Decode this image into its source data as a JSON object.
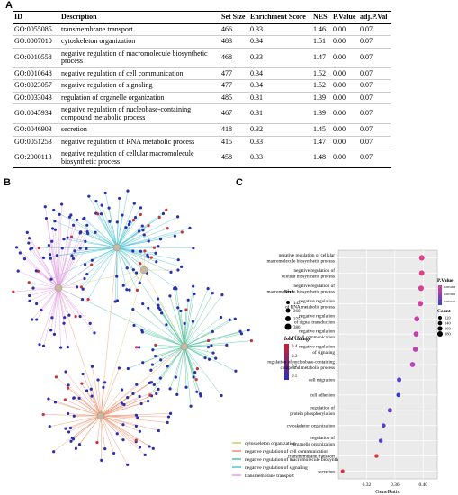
{
  "panel_labels": [
    "A",
    "B",
    "C"
  ],
  "table": {
    "columns": [
      "ID",
      "Description",
      "Set Size",
      "Enrichment Score",
      "NES",
      "P.Value",
      "adj.P.Val"
    ],
    "rows": [
      [
        "GO:0055085",
        "transmembrane transport",
        "466",
        "0.33",
        "1.46",
        "0.00",
        "0.07"
      ],
      [
        "GO:0007010",
        "cytoskeleton organization",
        "483",
        "0.34",
        "1.51",
        "0.00",
        "0.07"
      ],
      [
        "GO:0010558",
        "negative regulation of macromolecule biosynthetic process",
        "468",
        "0.33",
        "1.47",
        "0.00",
        "0.07"
      ],
      [
        "GO:0010648",
        "negative regulation of cell communication",
        "477",
        "0.34",
        "1.52",
        "0.00",
        "0.07"
      ],
      [
        "GO:0023057",
        "negative regulation of signaling",
        "477",
        "0.34",
        "1.52",
        "0.00",
        "0.07"
      ],
      [
        "GO:0033043",
        "regulation of organelle organization",
        "485",
        "0.31",
        "1.39",
        "0.00",
        "0.07"
      ],
      [
        "GO:0045934",
        "negative regulation of nucleobase-containing compound metabolic process",
        "467",
        "0.31",
        "1.39",
        "0.00",
        "0.07"
      ],
      [
        "GO:0046903",
        "secretion",
        "418",
        "0.32",
        "1.45",
        "0.00",
        "0.07"
      ],
      [
        "GO:0051253",
        "negative regulation of RNA metabolic process",
        "415",
        "0.33",
        "1.47",
        "0.00",
        "0.07"
      ],
      [
        "GO:2000113",
        "negative regulation of cellular macromolecule biosynthetic process",
        "458",
        "0.33",
        "1.48",
        "0.00",
        "0.07"
      ]
    ]
  },
  "network": {
    "size_title": "Size",
    "size_labels": [
      "143",
      "360",
      "375",
      "386"
    ],
    "fold_change_title": "fold change",
    "fold_change_labels": [
      "0.4",
      "0.3",
      "0.2",
      "0.1"
    ],
    "pathways": [
      {
        "name": "cytoskeleton organization",
        "color": "#d8c86a"
      },
      {
        "name": "negative regulation of cell communication",
        "color": "#ef8f6a"
      },
      {
        "name": "negative regulation of macromolecule biosynthetic process",
        "color": "#4fc39a"
      },
      {
        "name": "negative regulation of signaling",
        "color": "#4fc6d6"
      },
      {
        "name": "transmembrane transport",
        "color": "#e59be3"
      }
    ]
  },
  "chart_data": {
    "type": "scatter",
    "categories": [
      [
        "negative regulation of cellular",
        "macromolecule biosynthetic process"
      ],
      [
        "negative regulation of",
        "cellular biosynthetic process"
      ],
      [
        "negative regulation of",
        "macromolecule biosynthetic process"
      ],
      [
        "negative regulation",
        "of RNA metabolic process"
      ],
      [
        "negative regulation",
        "of signal transduction"
      ],
      [
        "negative regulation",
        "of cell communication"
      ],
      [
        "negative regulation",
        "of signaling"
      ],
      [
        "regulation of nucleobase-containing",
        "compound metabolic process"
      ],
      [
        "cell migration"
      ],
      [
        "cell adhesion"
      ],
      [
        "regulation of",
        "protein phosphorylation"
      ],
      [
        "cytoskeleton organization"
      ],
      [
        "regulation of",
        "organelle organization"
      ],
      [
        "transmembrane transport"
      ],
      [
        "secretion"
      ]
    ],
    "values": [
      0.398,
      0.398,
      0.397,
      0.396,
      0.391,
      0.39,
      0.389,
      0.385,
      0.366,
      0.365,
      0.353,
      0.344,
      0.34,
      0.334,
      0.286
    ],
    "counts": [
      185,
      180,
      183,
      178,
      170,
      170,
      168,
      170,
      150,
      140,
      150,
      140,
      135,
      130,
      120
    ],
    "colors": [
      "#e0408c",
      "#e0408c",
      "#d8409a",
      "#d040a0",
      "#c840a8",
      "#c040b0",
      "#c040b0",
      "#b840b8",
      "#6040d0",
      "#3040e0",
      "#7040c8",
      "#5040d8",
      "#5040d8",
      "#e03040",
      "#e03040"
    ],
    "xlim": [
      0.28,
      0.42
    ],
    "xticks": [
      0.32,
      0.36,
      {
        "value": 0.4,
        "label": "0.40"
      }
    ],
    "xlabel": "GeneRatio",
    "color_legend_title": "P.Value",
    "color_legend_labels": [
      "0.005008",
      "0.005009",
      "0.005010"
    ],
    "size_legend_title": "Count",
    "size_legend": [
      120,
      140,
      160,
      180
    ]
  }
}
